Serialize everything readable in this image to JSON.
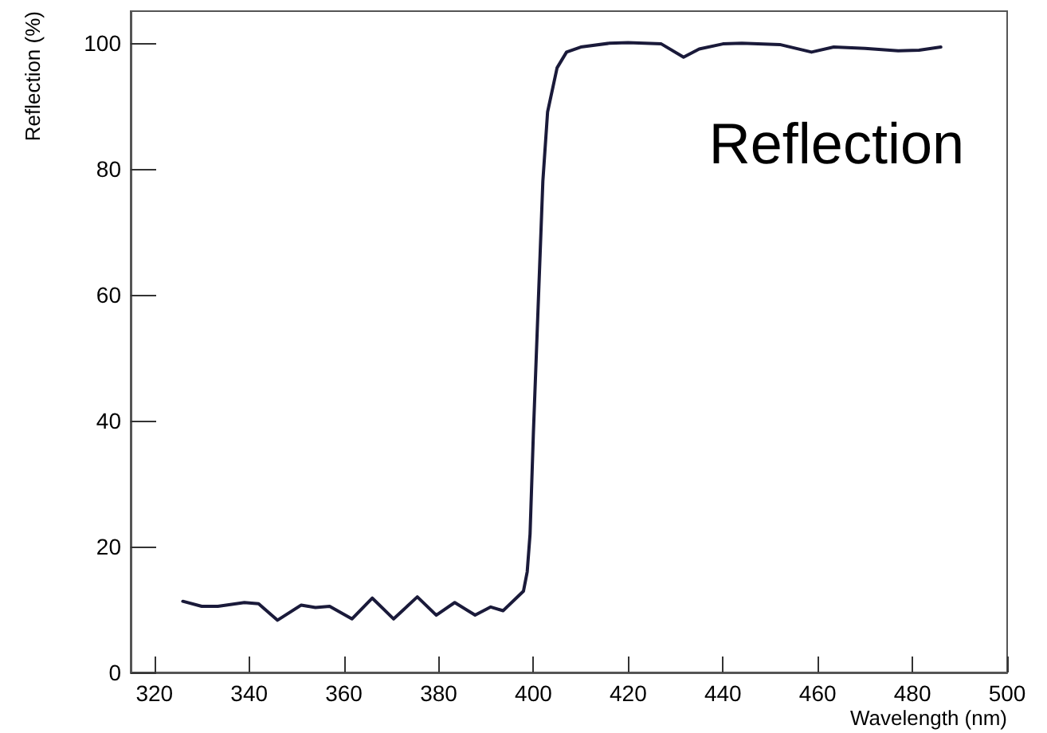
{
  "chart_data": {
    "type": "line",
    "xlabel": "Wavelength (nm)",
    "ylabel": "Reflection (%)",
    "annotations": [
      "Reflection"
    ],
    "x": [
      326,
      330,
      333.4,
      339,
      342,
      346,
      351,
      354,
      357,
      361.7,
      366,
      370.5,
      375.5,
      379.5,
      383.4,
      387.7,
      391,
      393.6,
      397.9,
      398.7,
      399.3,
      400,
      401,
      402,
      403,
      405,
      407,
      410,
      416,
      420,
      427,
      431.7,
      435,
      440,
      444,
      452,
      458.7,
      463.4,
      470,
      477,
      481.4,
      486
    ],
    "series": [
      {
        "color": "#1a1a3a",
        "values": [
          11.3,
          10.5,
          10.5,
          11.1,
          10.9,
          8.3,
          10.7,
          10.3,
          10.5,
          8.5,
          11.8,
          8.5,
          12,
          9.1,
          11.1,
          9.1,
          10.4,
          9.8,
          12.9,
          16,
          22,
          38,
          58,
          78,
          89,
          96,
          98.5,
          99.3,
          99.9,
          100,
          99.8,
          97.7,
          99,
          99.8,
          99.9,
          99.7,
          98.5,
          99.3,
          99.1,
          98.7,
          98.8,
          99.3
        ]
      }
    ],
    "xlim": [
      315,
      500
    ],
    "ylim": [
      0,
      105
    ],
    "xticks": [
      320,
      340,
      360,
      380,
      400,
      420,
      440,
      460,
      480,
      500
    ],
    "yticks": [
      0,
      20,
      40,
      60,
      80,
      100
    ],
    "grid": false,
    "marker": "none",
    "line_style": "solid"
  }
}
